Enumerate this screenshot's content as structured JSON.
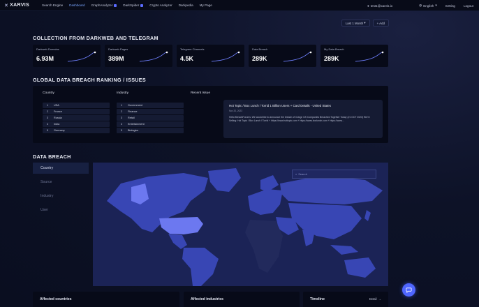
{
  "brand": {
    "name": "XARVIS"
  },
  "nav": [
    {
      "label": "Search Engine",
      "badge": false
    },
    {
      "label": "Dashboard",
      "badge": false
    },
    {
      "label": "GraphAnalyzer",
      "badge": true
    },
    {
      "label": "DarkSpider",
      "badge": true
    },
    {
      "label": "Crypto Analyzer",
      "badge": false
    },
    {
      "label": "Darkpedia",
      "badge": false
    },
    {
      "label": "My Page",
      "badge": false
    }
  ],
  "header_right": {
    "user": "test1@xarvis.io",
    "language": "English",
    "setting": "Setting",
    "logout": "Logout"
  },
  "collection": {
    "title": "COLLECTION FROM DARKWEB AND TELEGRAM",
    "period_label": "Last 1 Month",
    "add_label": "+ Add",
    "cards": [
      {
        "label": "Darkweb Domains",
        "value": "6.93M"
      },
      {
        "label": "Darkweb Pages",
        "value": "389M"
      },
      {
        "label": "Telegram Channels",
        "value": "4.5K"
      },
      {
        "label": "Data Breach",
        "value": "289K"
      },
      {
        "label": "My Data Breach",
        "value": "289K"
      }
    ]
  },
  "ranking": {
    "title": "GLOBAL DATA BREACH RANKING / ISSUES",
    "country_header": "Country",
    "industry_header": "Industry",
    "recent_header": "Recent Issue",
    "countries": [
      {
        "rank": "1",
        "name": "USA"
      },
      {
        "rank": "2",
        "name": "France"
      },
      {
        "rank": "3",
        "name": "Russia"
      },
      {
        "rank": "4",
        "name": "India"
      },
      {
        "rank": "5",
        "name": "Germany"
      }
    ],
    "industries": [
      {
        "rank": "1",
        "name": "Government"
      },
      {
        "rank": "2",
        "name": "Finance"
      },
      {
        "rank": "3",
        "name": "Retail"
      },
      {
        "rank": "4",
        "name": "Entertainment"
      },
      {
        "rank": "5",
        "name": "Biologics"
      }
    ],
    "issue": {
      "title": "Hot Topic / Box Lunch / Torrid 1 Billion Users + Card Details - United States",
      "date": "Nov 20, 2023",
      "body": "Hello BreachForums: We would like to announce the breach of 3 large US Companies Breached Together Today (21 OCT 2023) We're Selling: Hot Topic / Box Lunch / Torrid + https://www.hottopic.com + https://www.boxlunch.com + https://www..."
    }
  },
  "breach": {
    "title": "DATA BREACH",
    "tabs": [
      "Country",
      "Source",
      "Industry",
      "User"
    ],
    "active_tab": 0,
    "search_placeholder": "Search"
  },
  "bottom": {
    "affected_countries": "Affected countries",
    "affected_industries": "Affected industries",
    "timeline": "Timeline",
    "detail": "Detail"
  },
  "colors": {
    "accent": "#4f66ff",
    "map_ocean": "#1b2356",
    "map_land": "#3a47b0",
    "map_top": "#6c78f0",
    "map_dark": "#222a5c"
  }
}
